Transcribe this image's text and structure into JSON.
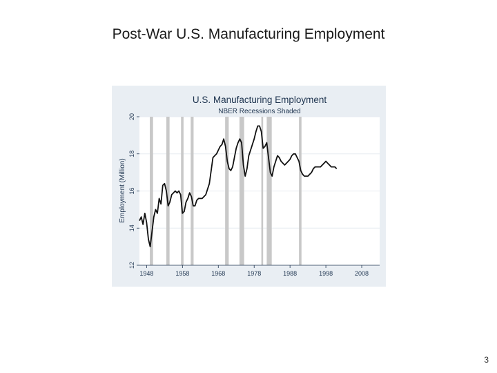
{
  "slide": {
    "title": "Post-War U.S. Manufacturing Employment",
    "page_number": "3"
  },
  "colors": {
    "outer_background": "#e9eef3",
    "plot_background": "#ffffff",
    "recession_band": "#c8c8c8",
    "line": "#111111",
    "gridline": "#e6ebf0",
    "title_text": "#1f3550"
  },
  "chart_data": {
    "type": "line",
    "title": "U.S. Manufacturing Employment",
    "subtitle": "NBER Recessions Shaded",
    "xlabel": "",
    "ylabel": "Employment (Million)",
    "xlim": [
      1946,
      2013
    ],
    "ylim": [
      12,
      20
    ],
    "x_ticks": [
      1948,
      1958,
      1968,
      1978,
      1988,
      1998,
      2008
    ],
    "y_ticks": [
      12,
      14,
      16,
      18,
      20
    ],
    "grid": true,
    "recessions": [
      [
        1948.9,
        1949.8
      ],
      [
        1953.5,
        1954.4
      ],
      [
        1957.6,
        1958.3
      ],
      [
        1960.3,
        1961.1
      ],
      [
        1969.9,
        1970.9
      ],
      [
        1973.9,
        1975.2
      ],
      [
        1980.0,
        1980.5
      ],
      [
        1981.5,
        1982.9
      ],
      [
        1990.5,
        1991.2
      ]
    ],
    "series": [
      {
        "name": "",
        "x": [
          1946.0,
          1946.5,
          1947.0,
          1947.5,
          1948.0,
          1948.5,
          1949.0,
          1949.5,
          1950.0,
          1950.5,
          1951.0,
          1951.5,
          1952.0,
          1952.5,
          1953.0,
          1953.5,
          1954.0,
          1954.5,
          1955.0,
          1955.5,
          1956.0,
          1956.5,
          1957.0,
          1957.5,
          1958.0,
          1958.5,
          1959.0,
          1959.5,
          1960.0,
          1960.5,
          1961.0,
          1961.5,
          1962.0,
          1962.5,
          1963.0,
          1963.5,
          1964.0,
          1964.5,
          1965.0,
          1965.5,
          1966.0,
          1966.5,
          1967.0,
          1967.5,
          1968.0,
          1968.5,
          1969.0,
          1969.5,
          1970.0,
          1970.5,
          1971.0,
          1971.5,
          1972.0,
          1972.5,
          1973.0,
          1973.5,
          1974.0,
          1974.5,
          1975.0,
          1975.5,
          1976.0,
          1976.5,
          1977.0,
          1977.5,
          1978.0,
          1978.5,
          1979.0,
          1979.5,
          1980.0,
          1980.5,
          1981.0,
          1981.5,
          1982.0,
          1982.5,
          1983.0,
          1983.5,
          1984.0,
          1984.5,
          1985.0,
          1985.5,
          1986.0,
          1986.5,
          1987.0,
          1987.5,
          1988.0,
          1988.5,
          1989.0,
          1989.5,
          1990.0,
          1990.5,
          1991.0,
          1991.5,
          1992.0,
          1992.5,
          1993.0,
          1993.5,
          1994.0,
          1994.5,
          1995.0,
          1995.5,
          1996.0,
          1996.5,
          1997.0,
          1997.5,
          1998.0,
          1998.5,
          1999.0,
          1999.5,
          2000.0,
          2000.5,
          2001.0
        ],
        "values": [
          14.4,
          14.6,
          14.2,
          14.8,
          14.3,
          13.4,
          13.0,
          13.8,
          14.6,
          15.0,
          14.8,
          15.6,
          15.3,
          16.3,
          16.4,
          16.0,
          15.2,
          15.4,
          15.8,
          15.9,
          16.0,
          15.9,
          16.0,
          15.8,
          14.8,
          14.9,
          15.4,
          15.6,
          15.9,
          15.7,
          15.2,
          15.2,
          15.5,
          15.6,
          15.6,
          15.6,
          15.7,
          15.8,
          16.1,
          16.4,
          17.1,
          17.8,
          17.9,
          18.0,
          18.2,
          18.4,
          18.5,
          18.8,
          18.4,
          17.6,
          17.2,
          17.1,
          17.3,
          17.8,
          18.3,
          18.6,
          18.8,
          18.6,
          17.4,
          16.8,
          17.2,
          17.9,
          18.2,
          18.5,
          18.8,
          19.2,
          19.5,
          19.5,
          19.2,
          18.3,
          18.4,
          18.6,
          17.8,
          17.0,
          16.8,
          17.3,
          17.6,
          17.9,
          17.8,
          17.6,
          17.5,
          17.4,
          17.5,
          17.6,
          17.7,
          17.9,
          18.0,
          18.0,
          17.8,
          17.6,
          17.1,
          16.9,
          16.8,
          16.8,
          16.8,
          16.9,
          17.0,
          17.2,
          17.3,
          17.3,
          17.3,
          17.3,
          17.4,
          17.5,
          17.6,
          17.5,
          17.4,
          17.3,
          17.3,
          17.3,
          17.2
        ]
      }
    ]
  }
}
